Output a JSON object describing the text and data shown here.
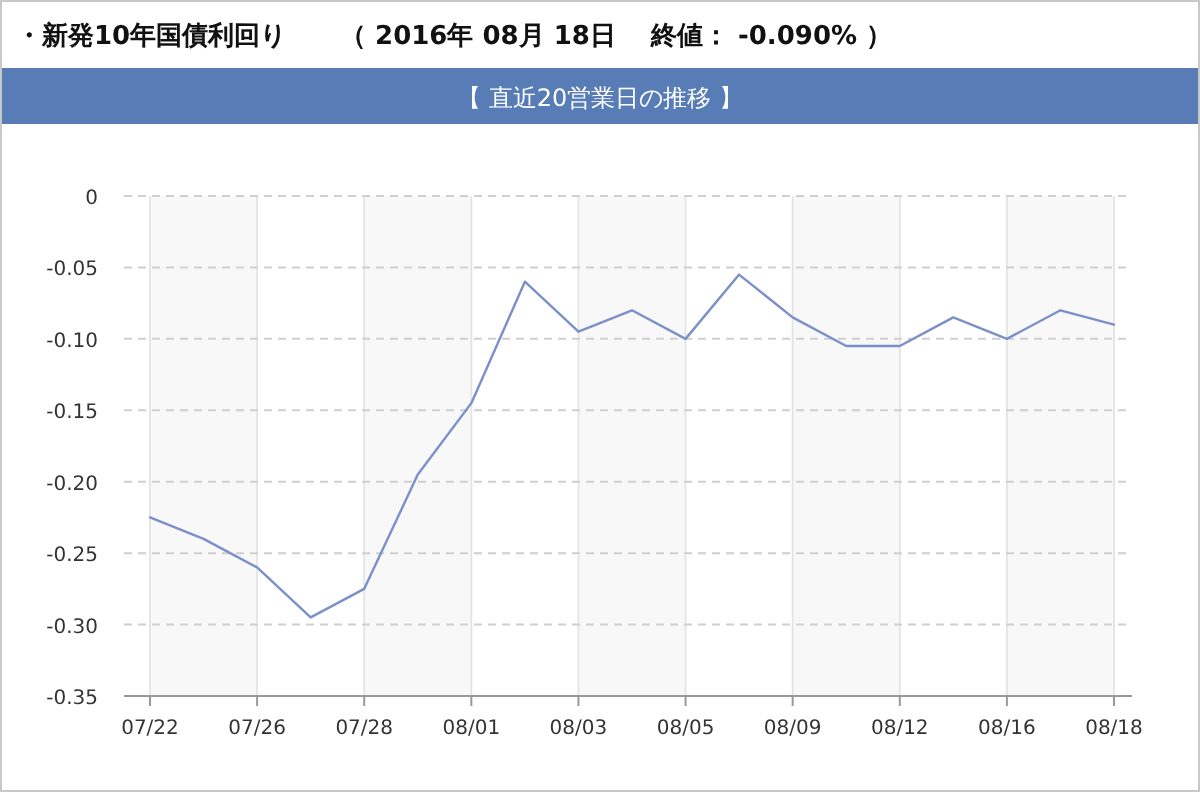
{
  "chart_data": {
    "type": "line",
    "title": "・新発10年国債利回り",
    "subtitle": "（ 2016年 08月 18日　 終値： -0.090% ）",
    "annotations": [
      "【 直近20営業日の推移 】"
    ],
    "categories": [
      "07/22",
      null,
      "07/26",
      null,
      "07/28",
      null,
      "08/01",
      null,
      "08/03",
      null,
      "08/05",
      null,
      "08/09",
      null,
      "08/12",
      null,
      "08/16",
      null,
      "08/18"
    ],
    "series": [
      {
        "color": "#7b8fc9",
        "values": [
          -0.225,
          -0.24,
          -0.26,
          -0.295,
          -0.275,
          -0.195,
          -0.145,
          -0.06,
          -0.095,
          -0.08,
          -0.1,
          -0.055,
          -0.085,
          -0.105,
          -0.105,
          -0.085,
          -0.1,
          -0.08,
          -0.09
        ]
      }
    ],
    "ylim": [
      -0.35,
      0
    ],
    "yticks": [
      0,
      -0.05,
      {
        "value": -0.1,
        "label": "-0.10"
      },
      -0.15,
      {
        "value": -0.2,
        "label": "-0.20"
      },
      -0.25,
      {
        "value": -0.3,
        "label": "-0.30"
      },
      -0.35
    ],
    "bands": [
      {
        "axis": "x",
        "from": "07/22",
        "to": "07/26",
        "color": "#f8f8f8"
      },
      {
        "axis": "x",
        "from": "07/28",
        "to": "08/01",
        "color": "#f8f8f8"
      },
      {
        "axis": "x",
        "from": "08/03",
        "to": "08/05",
        "color": "#f8f8f8"
      },
      {
        "axis": "x",
        "from": "08/09",
        "to": "08/12",
        "color": "#f8f8f8"
      },
      {
        "axis": "x",
        "from": "08/16",
        "to": "08/18",
        "color": "#f8f8f8"
      }
    ],
    "grid": true,
    "marker": "none",
    "line_style": "solid"
  }
}
